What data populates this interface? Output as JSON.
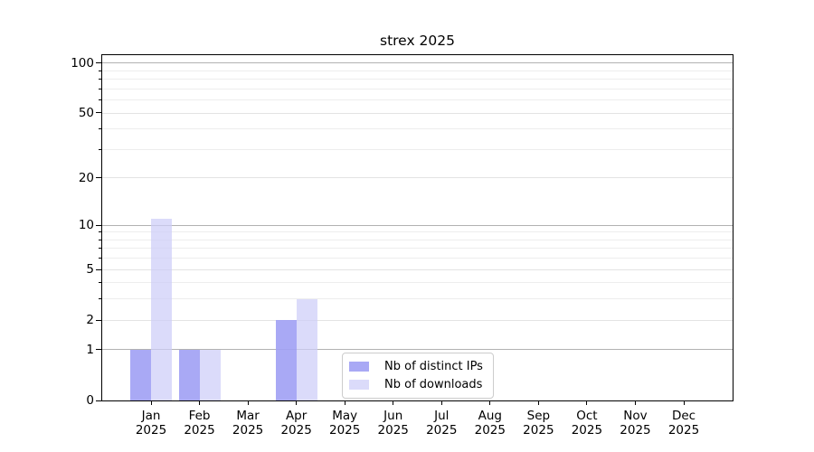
{
  "chart_data": {
    "type": "bar",
    "title": "strex 2025",
    "categories": [
      "Jan",
      "Feb",
      "Mar",
      "Apr",
      "May",
      "Jun",
      "Jul",
      "Aug",
      "Sep",
      "Oct",
      "Nov",
      "Dec"
    ],
    "year": "2025",
    "series": [
      {
        "name": "Nb of distinct IPs",
        "values": [
          1,
          1,
          0,
          2,
          0,
          0,
          0,
          0,
          0,
          0,
          0,
          0
        ]
      },
      {
        "name": "Nb of downloads",
        "values": [
          11,
          1,
          0,
          3,
          0,
          0,
          0,
          0,
          0,
          0,
          0,
          0
        ]
      }
    ],
    "y_axis": {
      "scale": "log1p",
      "min": 0,
      "max": 111.5,
      "major_ticks": [
        0,
        1,
        2,
        5,
        10,
        20,
        50,
        100
      ],
      "decade_gridlines": [
        1,
        10,
        100
      ],
      "mid_gridlines": [
        2,
        5,
        20,
        50
      ],
      "minor_gridlines": [
        3,
        4,
        6,
        7,
        8,
        9,
        30,
        40,
        60,
        70,
        80,
        90
      ]
    },
    "x_axis": {
      "tick_labels_line1": [
        "Jan",
        "Feb",
        "Mar",
        "Apr",
        "May",
        "Jun",
        "Jul",
        "Aug",
        "Sep",
        "Oct",
        "Nov",
        "Dec"
      ],
      "tick_labels_line2": [
        "2025",
        "2025",
        "2025",
        "2025",
        "2025",
        "2025",
        "2025",
        "2025",
        "2025",
        "2025",
        "2025",
        "2025"
      ]
    },
    "legend": {
      "position": "lower center",
      "entries": [
        "Nb of distinct IPs",
        "Nb of downloads"
      ]
    }
  },
  "colors": {
    "bar_distinct_ips": "rgba(160,160,244,0.9)",
    "bar_downloads": "rgba(205,205,248,0.72)",
    "grid_decade": "#b2b2b2",
    "grid_mid": "#e3e3e3",
    "grid_minor": "#ededed",
    "axis": "#000000",
    "legend_border": "#cccccc",
    "text": "#000000",
    "background": "#ffffff"
  }
}
